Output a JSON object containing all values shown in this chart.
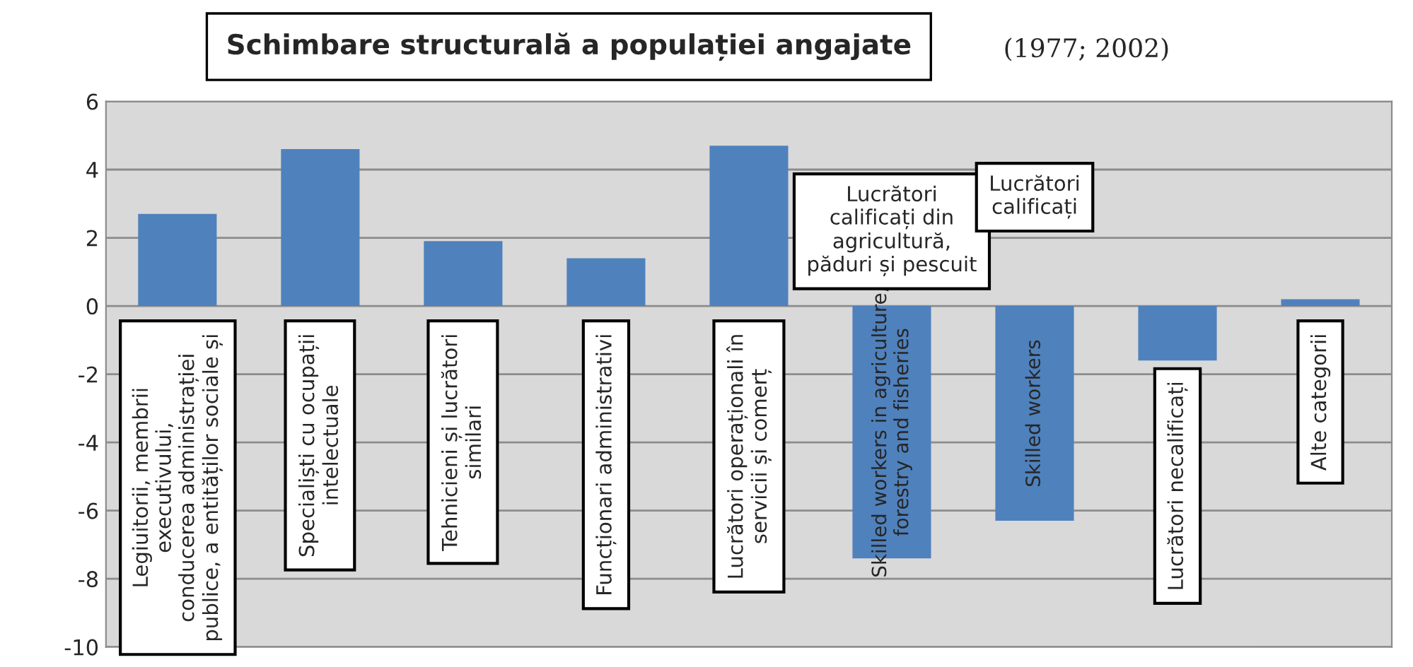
{
  "chart_data": {
    "type": "bar",
    "title": "Schimbare structurală a populației angajate",
    "subtitle": "(1977; 2002)",
    "categories": [
      "Legiuitorii, membrii\nexecutivului,\nconducerea administrației\npublice, a entităților sociale și",
      "Specialiști cu ocupații\nintelectuale",
      "Tehnicieni și lucrători\nsimilari",
      "Funcționari administrativi",
      "Lucrători operaționali în\nservicii și comerț",
      "Lucrători\ncalificați din\nagricultură,\npăduri și pescuit",
      "Lucrători\ncalificați",
      "Lucrători necalificați",
      "Alte categorii"
    ],
    "values": [
      2.7,
      4.6,
      1.9,
      1.4,
      4.7,
      -7.4,
      -6.3,
      -1.6,
      0.2
    ],
    "color": "#4f81bd",
    "ylim": [
      -10,
      6
    ],
    "yticks": [
      -10,
      -8,
      -6,
      -4,
      -2,
      0,
      2,
      4,
      6
    ],
    "grid": "y",
    "tick_labels": "y",
    "annotations": [
      "Skilled workers in agriculture,\nforestry and fisheries",
      "Skilled workers"
    ]
  }
}
